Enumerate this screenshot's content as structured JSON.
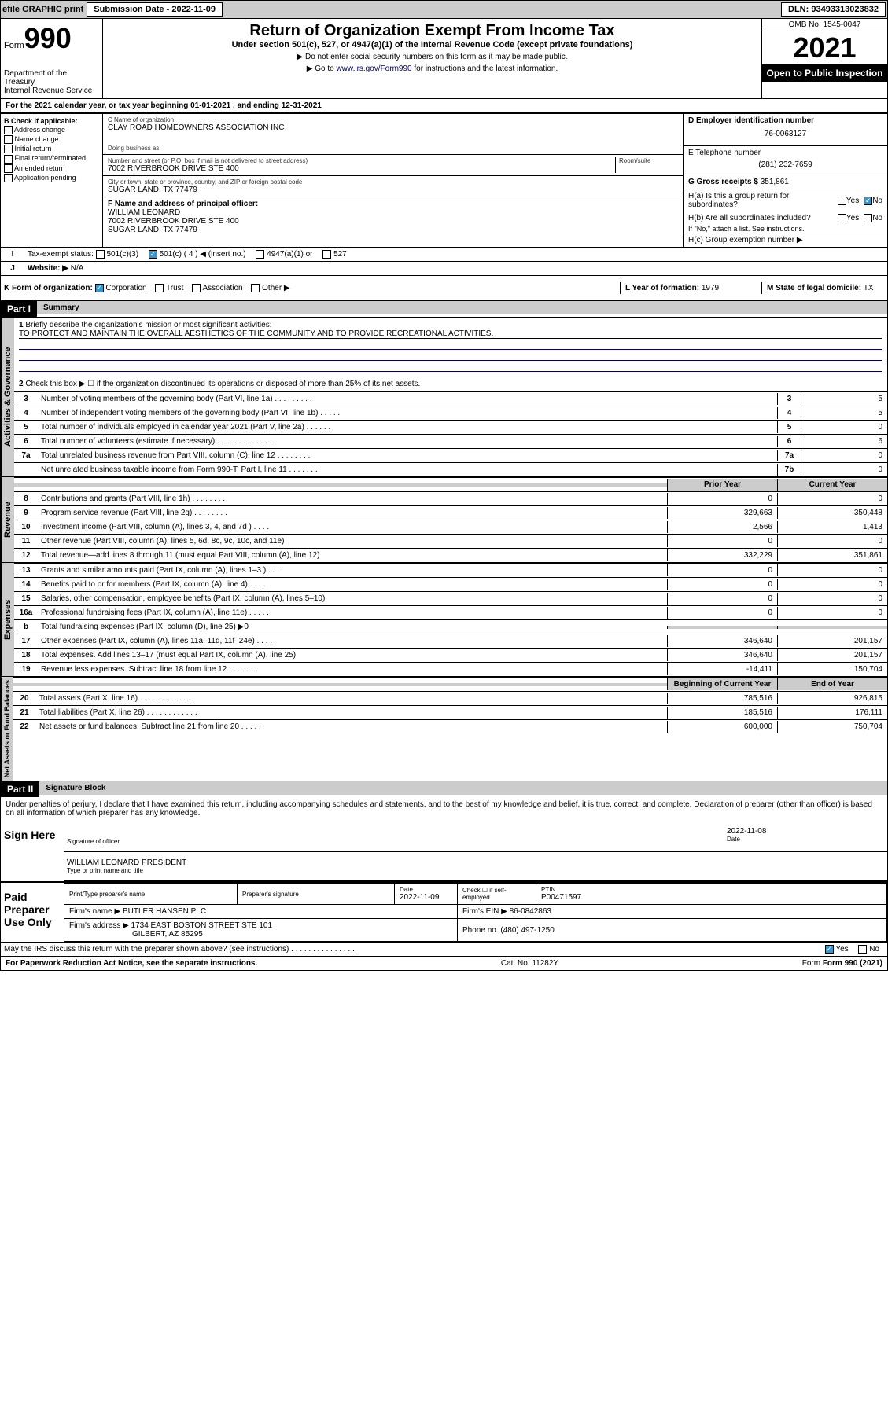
{
  "topbar": {
    "efile": "efile GRAPHIC print",
    "sub_label": "Submission Date - ",
    "sub_date": "2022-11-09",
    "dln_label": "DLN: ",
    "dln": "93493313023832"
  },
  "header": {
    "form_label": "Form",
    "form_num": "990",
    "dept": "Department of the Treasury",
    "irs": "Internal Revenue Service",
    "title": "Return of Organization Exempt From Income Tax",
    "sub1": "Under section 501(c), 527, or 4947(a)(1) of the Internal Revenue Code (except private foundations)",
    "sub2": "▶ Do not enter social security numbers on this form as it may be made public.",
    "sub3_pre": "▶ Go to ",
    "sub3_link": "www.irs.gov/Form990",
    "sub3_post": " for instructions and the latest information.",
    "omb": "OMB No. 1545-0047",
    "year": "2021",
    "inspect": "Open to Public Inspection"
  },
  "line_a": "For the 2021 calendar year, or tax year beginning 01-01-2021   , and ending 12-31-2021",
  "col_b": {
    "label": "B Check if applicable:",
    "opts": [
      "Address change",
      "Name change",
      "Initial return",
      "Final return/terminated",
      "Amended return",
      "Application pending"
    ]
  },
  "org": {
    "name_label": "C Name of organization",
    "name": "CLAY ROAD HOMEOWNERS ASSOCIATION INC",
    "dba_label": "Doing business as",
    "addr_label": "Number and street (or P.O. box if mail is not delivered to street address)",
    "room_label": "Room/suite",
    "addr": "7002 RIVERBROOK DRIVE STE 400",
    "city_label": "City or town, state or province, country, and ZIP or foreign postal code",
    "city": "SUGAR LAND, TX   77479",
    "f_label": "F Name and address of principal officer:",
    "officer": "WILLIAM LEONARD",
    "officer_addr1": "7002 RIVERBROOK DRIVE STE 400",
    "officer_addr2": "SUGAR LAND, TX  77479"
  },
  "right": {
    "d_label": "D Employer identification number",
    "ein": "76-0063127",
    "e_label": "E Telephone number",
    "phone": "(281) 232-7659",
    "g_label": "G Gross receipts $ ",
    "g_val": "351,861",
    "ha": "H(a)  Is this a group return for subordinates?",
    "hb": "H(b)  Are all subordinates included?",
    "hb_note": "If \"No,\" attach a list. See instructions.",
    "hc": "H(c)  Group exemption number ▶",
    "yes": "Yes",
    "no": "No"
  },
  "status": {
    "i_label": "Tax-exempt status:",
    "opts": [
      "501(c)(3)",
      "501(c) ( 4 ) ◀ (insert no.)",
      "4947(a)(1) or",
      "527"
    ],
    "j_label": "Website: ▶",
    "j_val": "N/A",
    "k_label": "K Form of organization:",
    "k_opts": [
      "Corporation",
      "Trust",
      "Association",
      "Other ▶"
    ],
    "l_label": "L Year of formation: ",
    "l_val": "1979",
    "m_label": "M State of legal domicile: ",
    "m_val": "TX"
  },
  "part1": {
    "label": "Part I",
    "title": "Summary",
    "q1": "Briefly describe the organization's mission or most significant activities:",
    "mission": "TO PROTECT AND MAINTAIN THE OVERALL AESTHETICS OF THE COMMUNITY AND TO PROVIDE RECREATIONAL ACTIVITIES.",
    "q2": "Check this box ▶ ☐  if the organization discontinued its operations or disposed of more than 25% of its net assets.",
    "side_gov": "Activities & Governance",
    "side_rev": "Revenue",
    "side_exp": "Expenses",
    "side_net": "Net Assets or Fund Balances",
    "prior": "Prior Year",
    "current": "Current Year",
    "begin": "Beginning of Current Year",
    "end": "End of Year"
  },
  "rows_gov": [
    {
      "n": "3",
      "d": "Number of voting members of the governing body (Part VI, line 1a)  .  .  .  .  .  .  .  .  .",
      "rn": "3",
      "v": "5"
    },
    {
      "n": "4",
      "d": "Number of independent voting members of the governing body (Part VI, line 1b)  .  .  .  .  .",
      "rn": "4",
      "v": "5"
    },
    {
      "n": "5",
      "d": "Total number of individuals employed in calendar year 2021 (Part V, line 2a)  .  .  .  .  .  .",
      "rn": "5",
      "v": "0"
    },
    {
      "n": "6",
      "d": "Total number of volunteers (estimate if necessary)  .  .  .  .  .  .  .  .  .  .  .  .  .",
      "rn": "6",
      "v": "6"
    },
    {
      "n": "7a",
      "d": "Total unrelated business revenue from Part VIII, column (C), line 12  .  .  .  .  .  .  .  .",
      "rn": "7a",
      "v": "0"
    },
    {
      "n": "",
      "d": "Net unrelated business taxable income from Form 990-T, Part I, line 11  .  .  .  .  .  .  .",
      "rn": "7b",
      "v": "0"
    }
  ],
  "rows_rev": [
    {
      "n": "8",
      "d": "Contributions and grants (Part VIII, line 1h)  .  .  .  .  .  .  .  .",
      "p": "0",
      "c": "0"
    },
    {
      "n": "9",
      "d": "Program service revenue (Part VIII, line 2g)  .  .  .  .  .  .  .  .",
      "p": "329,663",
      "c": "350,448"
    },
    {
      "n": "10",
      "d": "Investment income (Part VIII, column (A), lines 3, 4, and 7d )  .  .  .  .",
      "p": "2,566",
      "c": "1,413"
    },
    {
      "n": "11",
      "d": "Other revenue (Part VIII, column (A), lines 5, 6d, 8c, 9c, 10c, and 11e)",
      "p": "0",
      "c": "0"
    },
    {
      "n": "12",
      "d": "Total revenue—add lines 8 through 11 (must equal Part VIII, column (A), line 12)",
      "p": "332,229",
      "c": "351,861"
    }
  ],
  "rows_exp": [
    {
      "n": "13",
      "d": "Grants and similar amounts paid (Part IX, column (A), lines 1–3 )  .  .  .",
      "p": "0",
      "c": "0"
    },
    {
      "n": "14",
      "d": "Benefits paid to or for members (Part IX, column (A), line 4)  .  .  .  .",
      "p": "0",
      "c": "0"
    },
    {
      "n": "15",
      "d": "Salaries, other compensation, employee benefits (Part IX, column (A), lines 5–10)",
      "p": "0",
      "c": "0"
    },
    {
      "n": "16a",
      "d": "Professional fundraising fees (Part IX, column (A), line 11e)  .  .  .  .  .",
      "p": "0",
      "c": "0"
    },
    {
      "n": "b",
      "d": "Total fundraising expenses (Part IX, column (D), line 25) ▶0",
      "p": "",
      "c": ""
    },
    {
      "n": "17",
      "d": "Other expenses (Part IX, column (A), lines 11a–11d, 11f–24e)  .  .  .  .",
      "p": "346,640",
      "c": "201,157"
    },
    {
      "n": "18",
      "d": "Total expenses. Add lines 13–17 (must equal Part IX, column (A), line 25)",
      "p": "346,640",
      "c": "201,157"
    },
    {
      "n": "19",
      "d": "Revenue less expenses. Subtract line 18 from line 12  .  .  .  .  .  .  .",
      "p": "-14,411",
      "c": "150,704"
    }
  ],
  "rows_net": [
    {
      "n": "20",
      "d": "Total assets (Part X, line 16)  .  .  .  .  .  .  .  .  .  .  .  .  .",
      "p": "785,516",
      "c": "926,815"
    },
    {
      "n": "21",
      "d": "Total liabilities (Part X, line 26)  .  .  .  .  .  .  .  .  .  .  .  .",
      "p": "185,516",
      "c": "176,111"
    },
    {
      "n": "22",
      "d": "Net assets or fund balances. Subtract line 21 from line 20  .  .  .  .  .",
      "p": "600,000",
      "c": "750,704"
    }
  ],
  "part2": {
    "label": "Part II",
    "title": "Signature Block",
    "decl": "Under penalties of perjury, I declare that I have examined this return, including accompanying schedules and statements, and to the best of my knowledge and belief, it is true, correct, and complete. Declaration of preparer (other than officer) is based on all information of which preparer has any knowledge.",
    "sign_here": "Sign Here",
    "sig_officer": "Signature of officer",
    "sig_date": "2022-11-08",
    "date_label": "Date",
    "officer_name": "WILLIAM LEONARD  PRESIDENT",
    "name_label": "Type or print name and title",
    "paid": "Paid Preparer Use Only",
    "prep_name_label": "Print/Type preparer's name",
    "prep_sig_label": "Preparer's signature",
    "prep_date_label": "Date",
    "prep_date": "2022-11-09",
    "prep_check": "Check ☐ if self-employed",
    "ptin_label": "PTIN",
    "ptin": "P00471597",
    "firm_name_label": "Firm's name    ▶ ",
    "firm_name": "BUTLER HANSEN PLC",
    "firm_ein_label": "Firm's EIN ▶ ",
    "firm_ein": "86-0842863",
    "firm_addr_label": "Firm's address ▶ ",
    "firm_addr1": "1734 EAST BOSTON STREET STE 101",
    "firm_addr2": "GILBERT, AZ  85295",
    "firm_phone_label": "Phone no. ",
    "firm_phone": "(480) 497-1250",
    "may_irs": "May the IRS discuss this return with the preparer shown above? (see instructions)  .  .  .  .  .  .  .  .  .  .  .  .  .  .  .",
    "yes": "Yes",
    "no": "No"
  },
  "footer": {
    "left": "For Paperwork Reduction Act Notice, see the separate instructions.",
    "mid": "Cat. No. 11282Y",
    "right": "Form 990 (2021)"
  }
}
